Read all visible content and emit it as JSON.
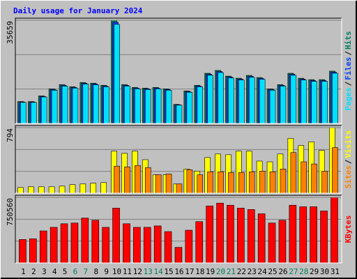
{
  "title": "Daily usage for January 2024",
  "legend_separator": "/",
  "chart_data": [
    {
      "type": "bar",
      "series": [
        {
          "name": "Hits",
          "color": "#00805c",
          "values": [
            7570,
            7570,
            9524,
            11966,
            13431,
            12699,
            14164,
            13920,
            13187,
            35659,
            13431,
            12455,
            12210,
            12455,
            11966,
            6594,
            11234,
            13187,
            17339,
            18316,
            16362,
            15630,
            16607,
            15874,
            11966,
            13431,
            17339,
            15630,
            15141,
            15141,
            18072
          ]
        },
        {
          "name": "Files",
          "color": "#0040ff",
          "values": [
            7420,
            7420,
            9340,
            11730,
            13160,
            12450,
            13880,
            13640,
            12920,
            34950,
            13160,
            12210,
            11970,
            12210,
            11730,
            6460,
            11010,
            12920,
            16990,
            17950,
            16030,
            15320,
            16270,
            15560,
            11730,
            13160,
            16990,
            15320,
            14840,
            14840,
            17710
          ]
        },
        {
          "name": "Pages",
          "color": "#00e0ff",
          "values": [
            7270,
            7270,
            9150,
            11490,
            12890,
            12190,
            13600,
            13360,
            12660,
            34230,
            12890,
            11960,
            11720,
            11960,
            11490,
            6330,
            10780,
            12660,
            16650,
            17580,
            15710,
            15000,
            15940,
            15240,
            11490,
            12890,
            16650,
            15000,
            14540,
            14540,
            17350
          ]
        }
      ],
      "ylim": [
        0,
        35659
      ],
      "yticks": [
        35659
      ],
      "grid": true
    },
    {
      "type": "bar",
      "series": [
        {
          "name": "Visits",
          "color": "#ffff00",
          "values": [
            69,
            78,
            78,
            78,
            86,
            104,
            112,
            121,
            129,
            509,
            483,
            509,
            406,
            224,
            224,
            112,
            293,
            267,
            432,
            475,
            466,
            509,
            509,
            389,
            380,
            475,
            665,
            578,
            621,
            518,
            794
          ]
        },
        {
          "name": "Sites",
          "color": "#ff8000",
          "values": [
            0,
            0,
            0,
            0,
            0,
            0,
            0,
            0,
            0,
            328,
            319,
            336,
            311,
            224,
            233,
            112,
            285,
            224,
            259,
            259,
            250,
            250,
            259,
            267,
            259,
            293,
            492,
            380,
            354,
            267,
            552
          ]
        }
      ],
      "ylim": [
        0,
        794
      ],
      "yticks": [
        794
      ],
      "grid": true
    },
    {
      "type": "bar",
      "categories": [
        "1",
        "2",
        "3",
        "4",
        "5",
        "6",
        "7",
        "8",
        "9",
        "10",
        "11",
        "12",
        "13",
        "14",
        "15",
        "16",
        "17",
        "18",
        "19",
        "20",
        "21",
        "22",
        "23",
        "24",
        "25",
        "26",
        "27",
        "28",
        "29",
        "30",
        "31"
      ],
      "category_colors": [
        "#000000",
        "#000000",
        "#000000",
        "#000000",
        "#000000",
        "#00805c",
        "#00805c",
        "#000000",
        "#000000",
        "#000000",
        "#000000",
        "#000000",
        "#00805c",
        "#00805c",
        "#000000",
        "#000000",
        "#000000",
        "#000000",
        "#000000",
        "#00805c",
        "#00805c",
        "#000000",
        "#000000",
        "#000000",
        "#000000",
        "#000000",
        "#00805c",
        "#00805c",
        "#000000",
        "#000000",
        "#000000"
      ],
      "series": [
        {
          "name": "KBytes",
          "color": "#ff0000",
          "values": [
            269000,
            277000,
            367000,
            408000,
            449000,
            457000,
            514000,
            489000,
            408000,
            628000,
            449000,
            408000,
            408000,
            424000,
            359000,
            179000,
            375000,
            473000,
            653000,
            685000,
            661000,
            628000,
            612000,
            563000,
            457000,
            489000,
            661000,
            644000,
            644000,
            595000,
            750560
          ]
        }
      ],
      "ylim": [
        0,
        750560
      ],
      "yticks": [
        750560
      ],
      "grid": true
    }
  ]
}
